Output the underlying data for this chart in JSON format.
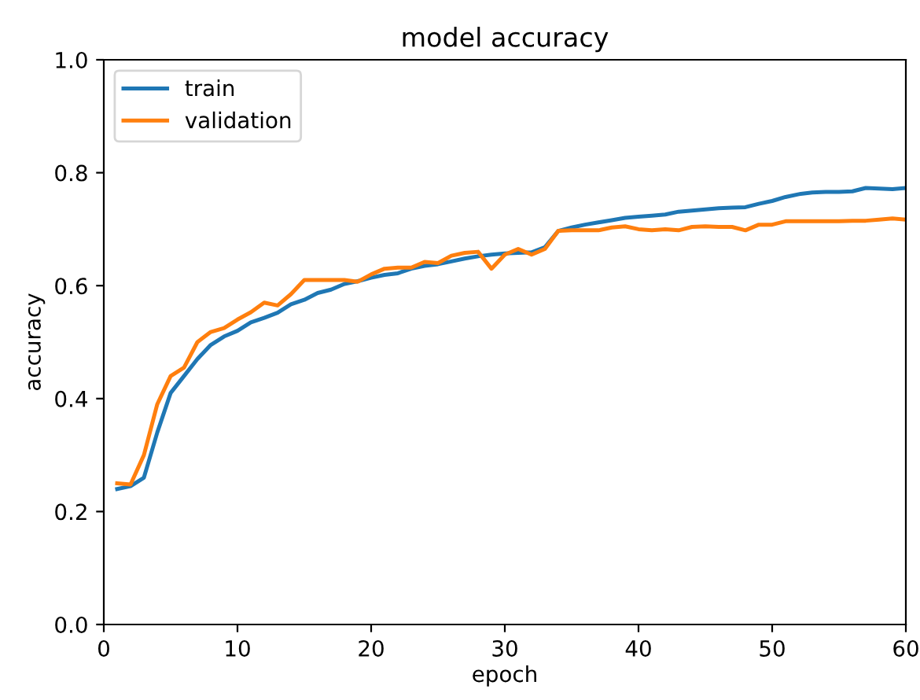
{
  "chart_data": {
    "type": "line",
    "title": "model accuracy",
    "xlabel": "epoch",
    "ylabel": "accuracy",
    "x": [
      1,
      2,
      3,
      4,
      5,
      6,
      7,
      8,
      9,
      10,
      11,
      12,
      13,
      14,
      15,
      16,
      17,
      18,
      19,
      20,
      21,
      22,
      23,
      24,
      25,
      26,
      27,
      28,
      29,
      30,
      31,
      32,
      33,
      34,
      35,
      36,
      37,
      38,
      39,
      40,
      41,
      42,
      43,
      44,
      45,
      46,
      47,
      48,
      49,
      50,
      51,
      52,
      53,
      54,
      55,
      56,
      57,
      58,
      59,
      60
    ],
    "series": [
      {
        "name": "train",
        "color": "#1f77b4",
        "values": [
          0.24,
          0.245,
          0.26,
          0.34,
          0.41,
          0.44,
          0.47,
          0.495,
          0.51,
          0.52,
          0.535,
          0.543,
          0.552,
          0.567,
          0.575,
          0.587,
          0.593,
          0.603,
          0.608,
          0.614,
          0.619,
          0.622,
          0.63,
          0.635,
          0.638,
          0.643,
          0.648,
          0.652,
          0.655,
          0.657,
          0.658,
          0.659,
          0.668,
          0.697,
          0.703,
          0.708,
          0.712,
          0.716,
          0.72,
          0.722,
          0.724,
          0.726,
          0.731,
          0.733,
          0.735,
          0.737,
          0.738,
          0.739,
          0.745,
          0.75,
          0.757,
          0.762,
          0.765,
          0.766,
          0.766,
          0.767,
          0.773,
          0.772,
          0.771,
          0.773
        ]
      },
      {
        "name": "validation",
        "color": "#ff7f0e",
        "values": [
          0.25,
          0.248,
          0.3,
          0.39,
          0.44,
          0.455,
          0.5,
          0.518,
          0.525,
          0.54,
          0.553,
          0.57,
          0.565,
          0.585,
          0.61,
          0.61,
          0.61,
          0.61,
          0.607,
          0.62,
          0.63,
          0.632,
          0.632,
          0.642,
          0.64,
          0.653,
          0.658,
          0.66,
          0.63,
          0.655,
          0.665,
          0.655,
          0.665,
          0.697,
          0.698,
          0.698,
          0.698,
          0.703,
          0.705,
          0.7,
          0.698,
          0.7,
          0.698,
          0.704,
          0.705,
          0.704,
          0.704,
          0.698,
          0.708,
          0.708,
          0.714,
          0.714,
          0.714,
          0.714,
          0.714,
          0.715,
          0.715,
          0.717,
          0.719,
          0.717
        ]
      }
    ],
    "xlim": [
      0,
      60
    ],
    "xticks": [
      0,
      10,
      20,
      30,
      40,
      50,
      60
    ],
    "ylim": [
      0,
      1.0
    ],
    "yticks": [
      {
        "value": 0,
        "label": "0.0"
      },
      {
        "value": 0.2,
        "label": "0.2"
      },
      {
        "value": 0.4,
        "label": "0.4"
      },
      {
        "value": 0.6,
        "label": "0.6"
      },
      {
        "value": 0.8,
        "label": "0.8"
      },
      {
        "value": 1.0,
        "label": "1.0"
      }
    ],
    "legend": "top left",
    "grid": false,
    "marker": "none",
    "line_style": "solid"
  }
}
